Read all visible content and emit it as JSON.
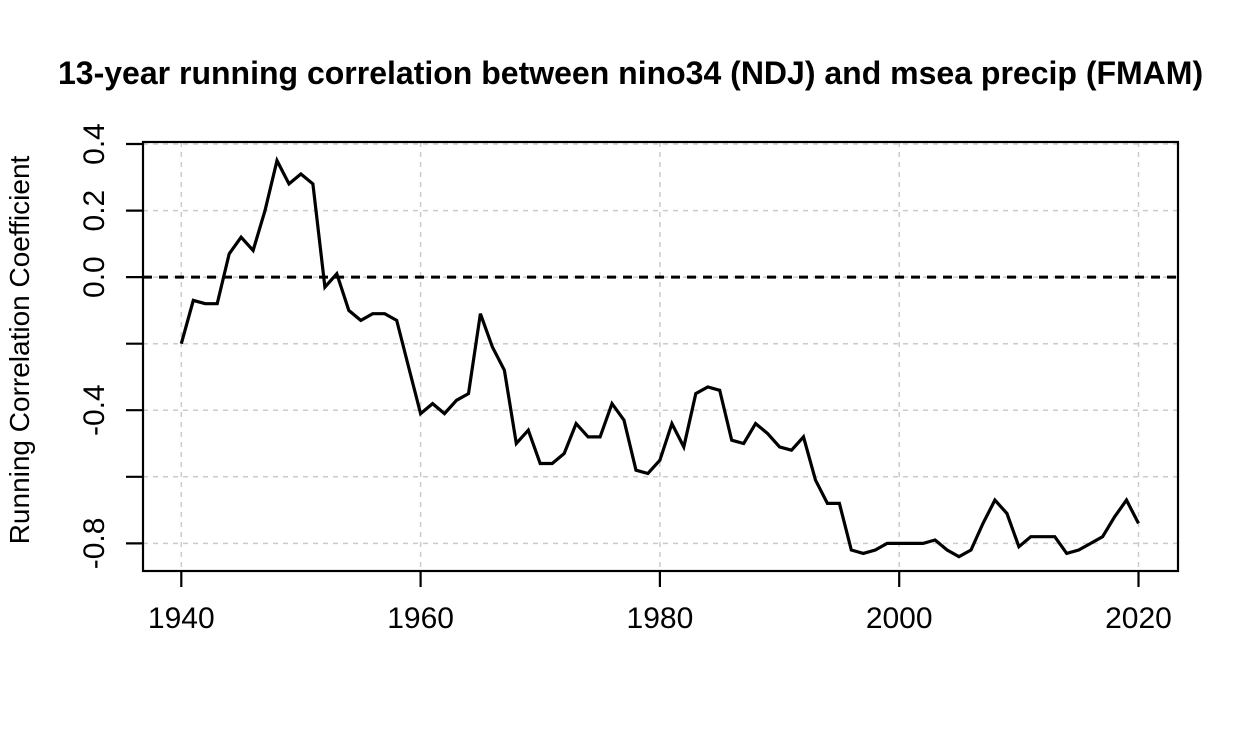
{
  "chart_data": {
    "type": "line",
    "title": "13-year running correlation between nino34 (NDJ) and msea precip (FMAM)",
    "ylabel": "Running Correlation Coefficient",
    "xlabel": "",
    "x": [
      1940,
      1941,
      1942,
      1943,
      1944,
      1945,
      1946,
      1947,
      1948,
      1949,
      1950,
      1951,
      1952,
      1953,
      1954,
      1955,
      1956,
      1957,
      1958,
      1959,
      1960,
      1961,
      1962,
      1963,
      1964,
      1965,
      1966,
      1967,
      1968,
      1969,
      1970,
      1971,
      1972,
      1973,
      1974,
      1975,
      1976,
      1977,
      1978,
      1979,
      1980,
      1981,
      1982,
      1983,
      1984,
      1985,
      1986,
      1987,
      1988,
      1989,
      1990,
      1991,
      1992,
      1993,
      1994,
      1995,
      1996,
      1997,
      1998,
      1999,
      2000,
      2001,
      2002,
      2003,
      2004,
      2005,
      2006,
      2007,
      2008,
      2009,
      2010,
      2011,
      2012,
      2013,
      2014,
      2015,
      2016,
      2017,
      2018,
      2019,
      2020
    ],
    "values": [
      -0.2,
      -0.07,
      -0.08,
      -0.08,
      0.07,
      0.12,
      0.08,
      0.2,
      0.35,
      0.28,
      0.31,
      0.28,
      -0.03,
      0.01,
      -0.1,
      -0.13,
      -0.11,
      -0.11,
      -0.13,
      -0.27,
      -0.41,
      -0.38,
      -0.41,
      -0.37,
      -0.35,
      -0.11,
      -0.21,
      -0.28,
      -0.5,
      -0.46,
      -0.56,
      -0.56,
      -0.53,
      -0.44,
      -0.48,
      -0.48,
      -0.38,
      -0.43,
      -0.58,
      -0.59,
      -0.55,
      -0.44,
      -0.51,
      -0.35,
      -0.33,
      -0.34,
      -0.49,
      -0.5,
      -0.44,
      -0.47,
      -0.51,
      -0.52,
      -0.48,
      -0.61,
      -0.68,
      -0.68,
      -0.82,
      -0.83,
      -0.82,
      -0.8,
      -0.8,
      -0.8,
      -0.8,
      -0.79,
      -0.82,
      -0.84,
      -0.82,
      -0.74,
      -0.67,
      -0.71,
      -0.81,
      -0.78,
      -0.78,
      -0.78,
      -0.83,
      -0.82,
      -0.8,
      -0.78,
      -0.72,
      -0.67,
      -0.74
    ],
    "x_ticks": [
      1940,
      1960,
      1980,
      2000,
      2020
    ],
    "x_tick_labels": [
      "1940",
      "1960",
      "1980",
      "2000",
      "2020"
    ],
    "y_ticks": [
      0.4,
      0.2,
      0.0,
      -0.2,
      -0.4,
      -0.6,
      -0.8
    ],
    "y_tick_labels": [
      "0.4",
      "0.2",
      "0.0",
      "",
      "-0.4",
      "",
      "-0.8"
    ],
    "xlim": [
      1936.8,
      2023.3
    ],
    "ylim": [
      -0.883,
      0.406
    ],
    "grid": "dashed, on both axes at tick positions",
    "legend_position": "none",
    "reference_line": {
      "value": 0.0,
      "style": "dashed",
      "color": "#000000"
    },
    "line_color": "#000000",
    "grid_color": "#cbcbcb",
    "background": "#ffffff"
  }
}
